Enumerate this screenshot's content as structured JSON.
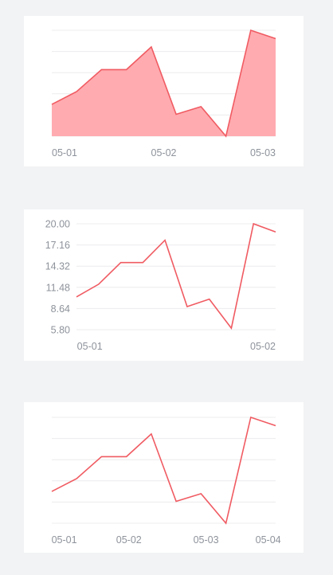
{
  "colors": {
    "line": "#f05b62",
    "area_fill": "#ffabb0",
    "grid": "#ececee",
    "tick_text": "#8e939b",
    "background": "#f2f3f5",
    "card": "#ffffff"
  },
  "chart_data": [
    {
      "type": "area",
      "x": [
        0,
        1,
        2,
        3,
        4,
        5,
        6,
        7,
        8,
        9
      ],
      "values": [
        10.2,
        11.9,
        14.8,
        14.8,
        17.8,
        8.9,
        9.9,
        6.0,
        20.0,
        18.9
      ],
      "ylim": [
        6,
        20
      ],
      "grid": true,
      "x_ticks": [
        {
          "x": 0,
          "label": "05-01"
        },
        {
          "x": 4.5,
          "label": "05-02"
        },
        {
          "x": 9,
          "label": "05-03"
        }
      ]
    },
    {
      "type": "line",
      "x": [
        0,
        1,
        2,
        3,
        4,
        5,
        6,
        7,
        8,
        9
      ],
      "values": [
        10.2,
        11.9,
        14.8,
        14.8,
        17.8,
        8.9,
        9.9,
        6.0,
        20.0,
        18.9
      ],
      "ylim": [
        5.8,
        20.0
      ],
      "grid": true,
      "y_ticks": [
        "20.00",
        "17.16",
        "14.32",
        "11.48",
        "8.64",
        "5.80"
      ],
      "x_ticks": [
        {
          "x": 0.6,
          "label": "05-01"
        },
        {
          "x": 9,
          "label": "05-02"
        }
      ]
    },
    {
      "type": "line",
      "x": [
        0,
        1,
        2,
        3,
        4,
        5,
        6,
        7,
        8,
        9
      ],
      "values": [
        10.2,
        11.9,
        14.8,
        14.8,
        17.8,
        8.9,
        9.9,
        6.0,
        20.0,
        18.9
      ],
      "ylim": [
        6,
        20
      ],
      "grid": true,
      "x_ticks": [
        {
          "x": 0.5,
          "label": "05-01"
        },
        {
          "x": 3.1,
          "label": "05-02"
        },
        {
          "x": 6.2,
          "label": "05-03"
        },
        {
          "x": 8.7,
          "label": "05-04"
        }
      ]
    }
  ]
}
